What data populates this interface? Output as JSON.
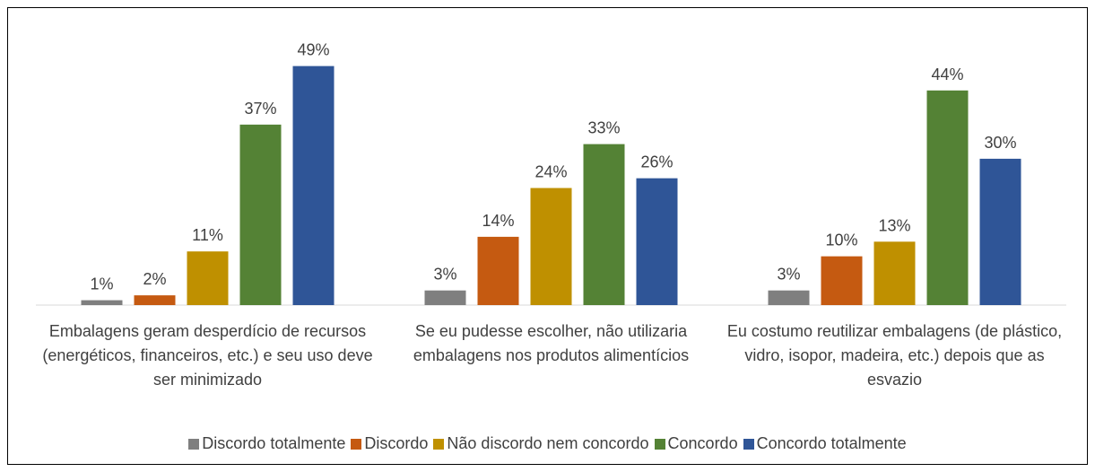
{
  "chart_data": {
    "type": "bar",
    "categories": [
      "Embalagens geram desperdício de recursos (energéticos, financeiros, etc.) e seu uso deve ser minimizado",
      "Se eu pudesse escolher, não utilizaria embalagens nos produtos alimentícios",
      "Eu costumo reutilizar embalagens (de plástico, vidro, isopor, madeira, etc.) depois que as esvazio"
    ],
    "series": [
      {
        "name": "Discordo totalmente",
        "color": "#7f7f7f",
        "values": [
          1,
          3,
          3
        ],
        "value_labels": [
          "1%",
          "3%",
          "3%"
        ]
      },
      {
        "name": "Discordo",
        "color": "#c55a11",
        "values": [
          2,
          14,
          10
        ],
        "value_labels": [
          "2%",
          "14%",
          "10%"
        ]
      },
      {
        "name": "Não discordo nem concordo",
        "color": "#bf9000",
        "values": [
          11,
          24,
          13
        ],
        "value_labels": [
          "11%",
          "24%",
          "13%"
        ]
      },
      {
        "name": "Concordo",
        "color": "#548235",
        "values": [
          37,
          33,
          44
        ],
        "value_labels": [
          "37%",
          "33%",
          "44%"
        ]
      },
      {
        "name": "Concordo totalmente",
        "color": "#2f5597",
        "values": [
          49,
          26,
          30
        ],
        "value_labels": [
          "49%",
          "26%",
          "30%"
        ]
      }
    ],
    "ylim": [
      0,
      55
    ],
    "legend": "bottom"
  }
}
